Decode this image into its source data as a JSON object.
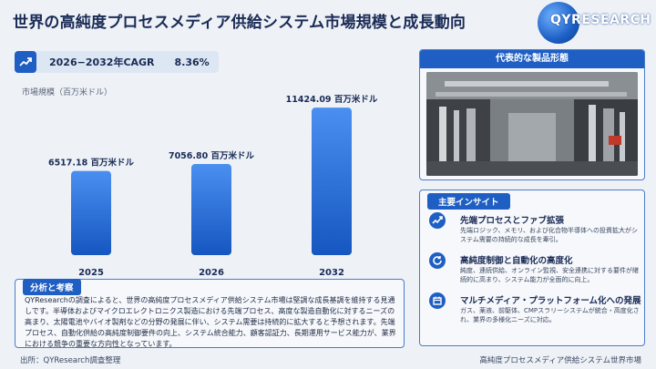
{
  "header": {
    "title": "世界の高純度プロセスメディア供給システム市場規模と成長動向",
    "logo_text": "QYRESEARCH"
  },
  "cagr": {
    "label": "2026−2032年CAGR",
    "value": "8.36%",
    "icon": "trend-up-icon"
  },
  "chart_data": {
    "type": "bar",
    "title": "",
    "ylabel": "市場規模（百万米ドル）",
    "xlabel": "",
    "categories": [
      "2025",
      "2026",
      "2032"
    ],
    "values": [
      6517.18,
      7056.8,
      11424.09
    ],
    "data_labels": [
      "6517.18 百万米ドル",
      "7056.80 百万米ドル",
      "11424.09 百万米ドル"
    ],
    "ylim": [
      0,
      12000
    ],
    "grid": false,
    "bar_color_top": "#4a8ff0",
    "bar_color_bottom": "#1556c0"
  },
  "analysis": {
    "heading": "分析と考察",
    "text": "QYResearchの調査によると、世界の高純度プロセスメディア供給システム市場は堅調な成長基調を維持する見通しです。半導体およびマイクロエレクトロニクス製造における先端プロセス、高度な製造自動化に対するニーズの高まり、太陽電池やバイオ製剤などの分野の発展に伴い、システム需要は持続的に拡大すると予想されます。先端プロセス、自動化供給の高純度制御要件の向上、システム統合能力、顧客認証力、長期運用サービス能力が、業界における競争の重要な方向性となっています。"
  },
  "product": {
    "heading": "代表的な製品形態"
  },
  "insights": {
    "heading": "主要インサイト",
    "items": [
      {
        "icon": "trend-up-icon",
        "title": "先端プロセスとファブ拡張",
        "desc": "先端ロジック、メモリ、および化合物半導体への投資拡大がシステム需要の持続的な成長を牽引。"
      },
      {
        "icon": "refresh-icon",
        "title": "高純度制御と自動化の高度化",
        "desc": "純度、連続供給、オンライン監視、安全連携に対する要件が継続的に高まり、システム能力が全面的に向上。"
      },
      {
        "icon": "calendar-icon",
        "title": "マルチメディア・プラットフォーム化への発展",
        "desc": "ガス、薬液、前駆体、CMPスラリーシステムが統合・高度化され、業界の多様化ニーズに対応。"
      }
    ]
  },
  "footer": {
    "source": "出所：QYResearch調査整理",
    "caption": "高純度プロセスメディア供給システム世界市場"
  }
}
